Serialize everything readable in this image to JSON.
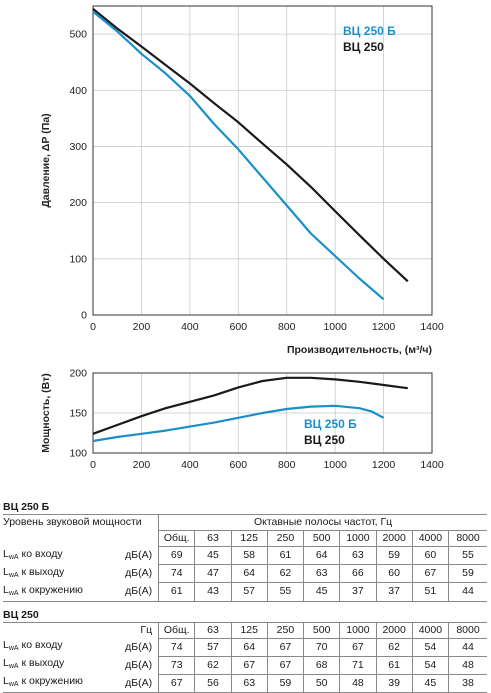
{
  "chart_data": [
    {
      "type": "line",
      "ylabel": "Давление, ΔР (Па)",
      "xlabel": "Производительность, (м³/ч)",
      "xlim": [
        0,
        1400
      ],
      "ylim": [
        0,
        550
      ],
      "xticks": [
        0,
        200,
        400,
        600,
        800,
        1000,
        1200,
        1400
      ],
      "yticks": [
        0,
        100,
        200,
        300,
        400,
        500
      ],
      "legend_position": "top-right",
      "series": [
        {
          "name": "ВЦ 250 Б",
          "color": "#1b8fc9",
          "x": [
            0,
            100,
            200,
            300,
            400,
            500,
            600,
            700,
            800,
            900,
            1000,
            1100,
            1200
          ],
          "y": [
            540,
            505,
            465,
            430,
            390,
            340,
            295,
            245,
            195,
            145,
            105,
            65,
            28
          ]
        },
        {
          "name": "ВЦ 250",
          "color": "#1a1a1a",
          "x": [
            0,
            100,
            200,
            300,
            400,
            500,
            600,
            700,
            800,
            900,
            1000,
            1100,
            1200,
            1300
          ],
          "y": [
            545,
            510,
            478,
            445,
            412,
            377,
            343,
            305,
            268,
            228,
            185,
            142,
            100,
            60
          ]
        }
      ]
    },
    {
      "type": "line",
      "ylabel": "Мощность, (Вт)",
      "xlim": [
        0,
        1400
      ],
      "ylim": [
        100,
        200
      ],
      "xticks": [
        0,
        200,
        400,
        600,
        800,
        1000,
        1200,
        1400
      ],
      "yticks": [
        100,
        150,
        200
      ],
      "legend_position": "right",
      "series": [
        {
          "name": "ВЦ 250 Б",
          "color": "#1b8fc9",
          "x": [
            0,
            100,
            200,
            300,
            400,
            500,
            600,
            700,
            800,
            900,
            1000,
            1100,
            1150,
            1200
          ],
          "y": [
            115,
            120,
            124,
            128,
            133,
            138,
            144,
            150,
            155,
            158,
            159,
            156,
            152,
            144
          ]
        },
        {
          "name": "ВЦ 250",
          "color": "#1a1a1a",
          "x": [
            0,
            100,
            200,
            300,
            400,
            500,
            600,
            700,
            800,
            900,
            1000,
            1100,
            1200,
            1300
          ],
          "y": [
            124,
            135,
            146,
            156,
            164,
            172,
            182,
            190,
            194,
            194,
            192,
            189,
            185,
            181
          ]
        }
      ]
    }
  ],
  "tables": [
    {
      "title": "ВЦ 250 Б",
      "header_label": "Уровень звуковой мощности",
      "bands_title": "Октавные полосы частот, Гц",
      "columns": [
        "Общ.",
        "63",
        "125",
        "250",
        "500",
        "1000",
        "2000",
        "4000",
        "8000"
      ],
      "rows": [
        {
          "name_sub": "wA",
          "name_rest": " ко входу",
          "unit": "дБ(А)",
          "values": [
            "69",
            "45",
            "58",
            "61",
            "64",
            "63",
            "59",
            "60",
            "55"
          ]
        },
        {
          "name_sub": "wA",
          "name_rest": " к выходу",
          "unit": "дБ(А)",
          "values": [
            "74",
            "47",
            "64",
            "62",
            "63",
            "66",
            "60",
            "67",
            "59"
          ]
        },
        {
          "name_sub": "wA",
          "name_rest": " к окружению",
          "unit": "дБ(А)",
          "values": [
            "61",
            "43",
            "57",
            "55",
            "45",
            "37",
            "37",
            "51",
            "44"
          ]
        }
      ]
    },
    {
      "title": "ВЦ 250",
      "hz_label": "Гц",
      "columns": [
        "Общ.",
        "63",
        "125",
        "250",
        "500",
        "1000",
        "2000",
        "4000",
        "8000"
      ],
      "rows": [
        {
          "name_sub": "wA",
          "name_rest": " ко входу",
          "unit": "дБ(А)",
          "values": [
            "74",
            "57",
            "64",
            "67",
            "70",
            "67",
            "62",
            "54",
            "44"
          ]
        },
        {
          "name_sub": "wA",
          "name_rest": " к выходу",
          "unit": "дБ(А)",
          "values": [
            "73",
            "62",
            "67",
            "67",
            "68",
            "71",
            "61",
            "54",
            "48"
          ]
        },
        {
          "name_sub": "wA",
          "name_rest": " к окружению",
          "unit": "дБ(А)",
          "values": [
            "67",
            "56",
            "63",
            "59",
            "50",
            "48",
            "39",
            "45",
            "38"
          ]
        }
      ]
    }
  ]
}
